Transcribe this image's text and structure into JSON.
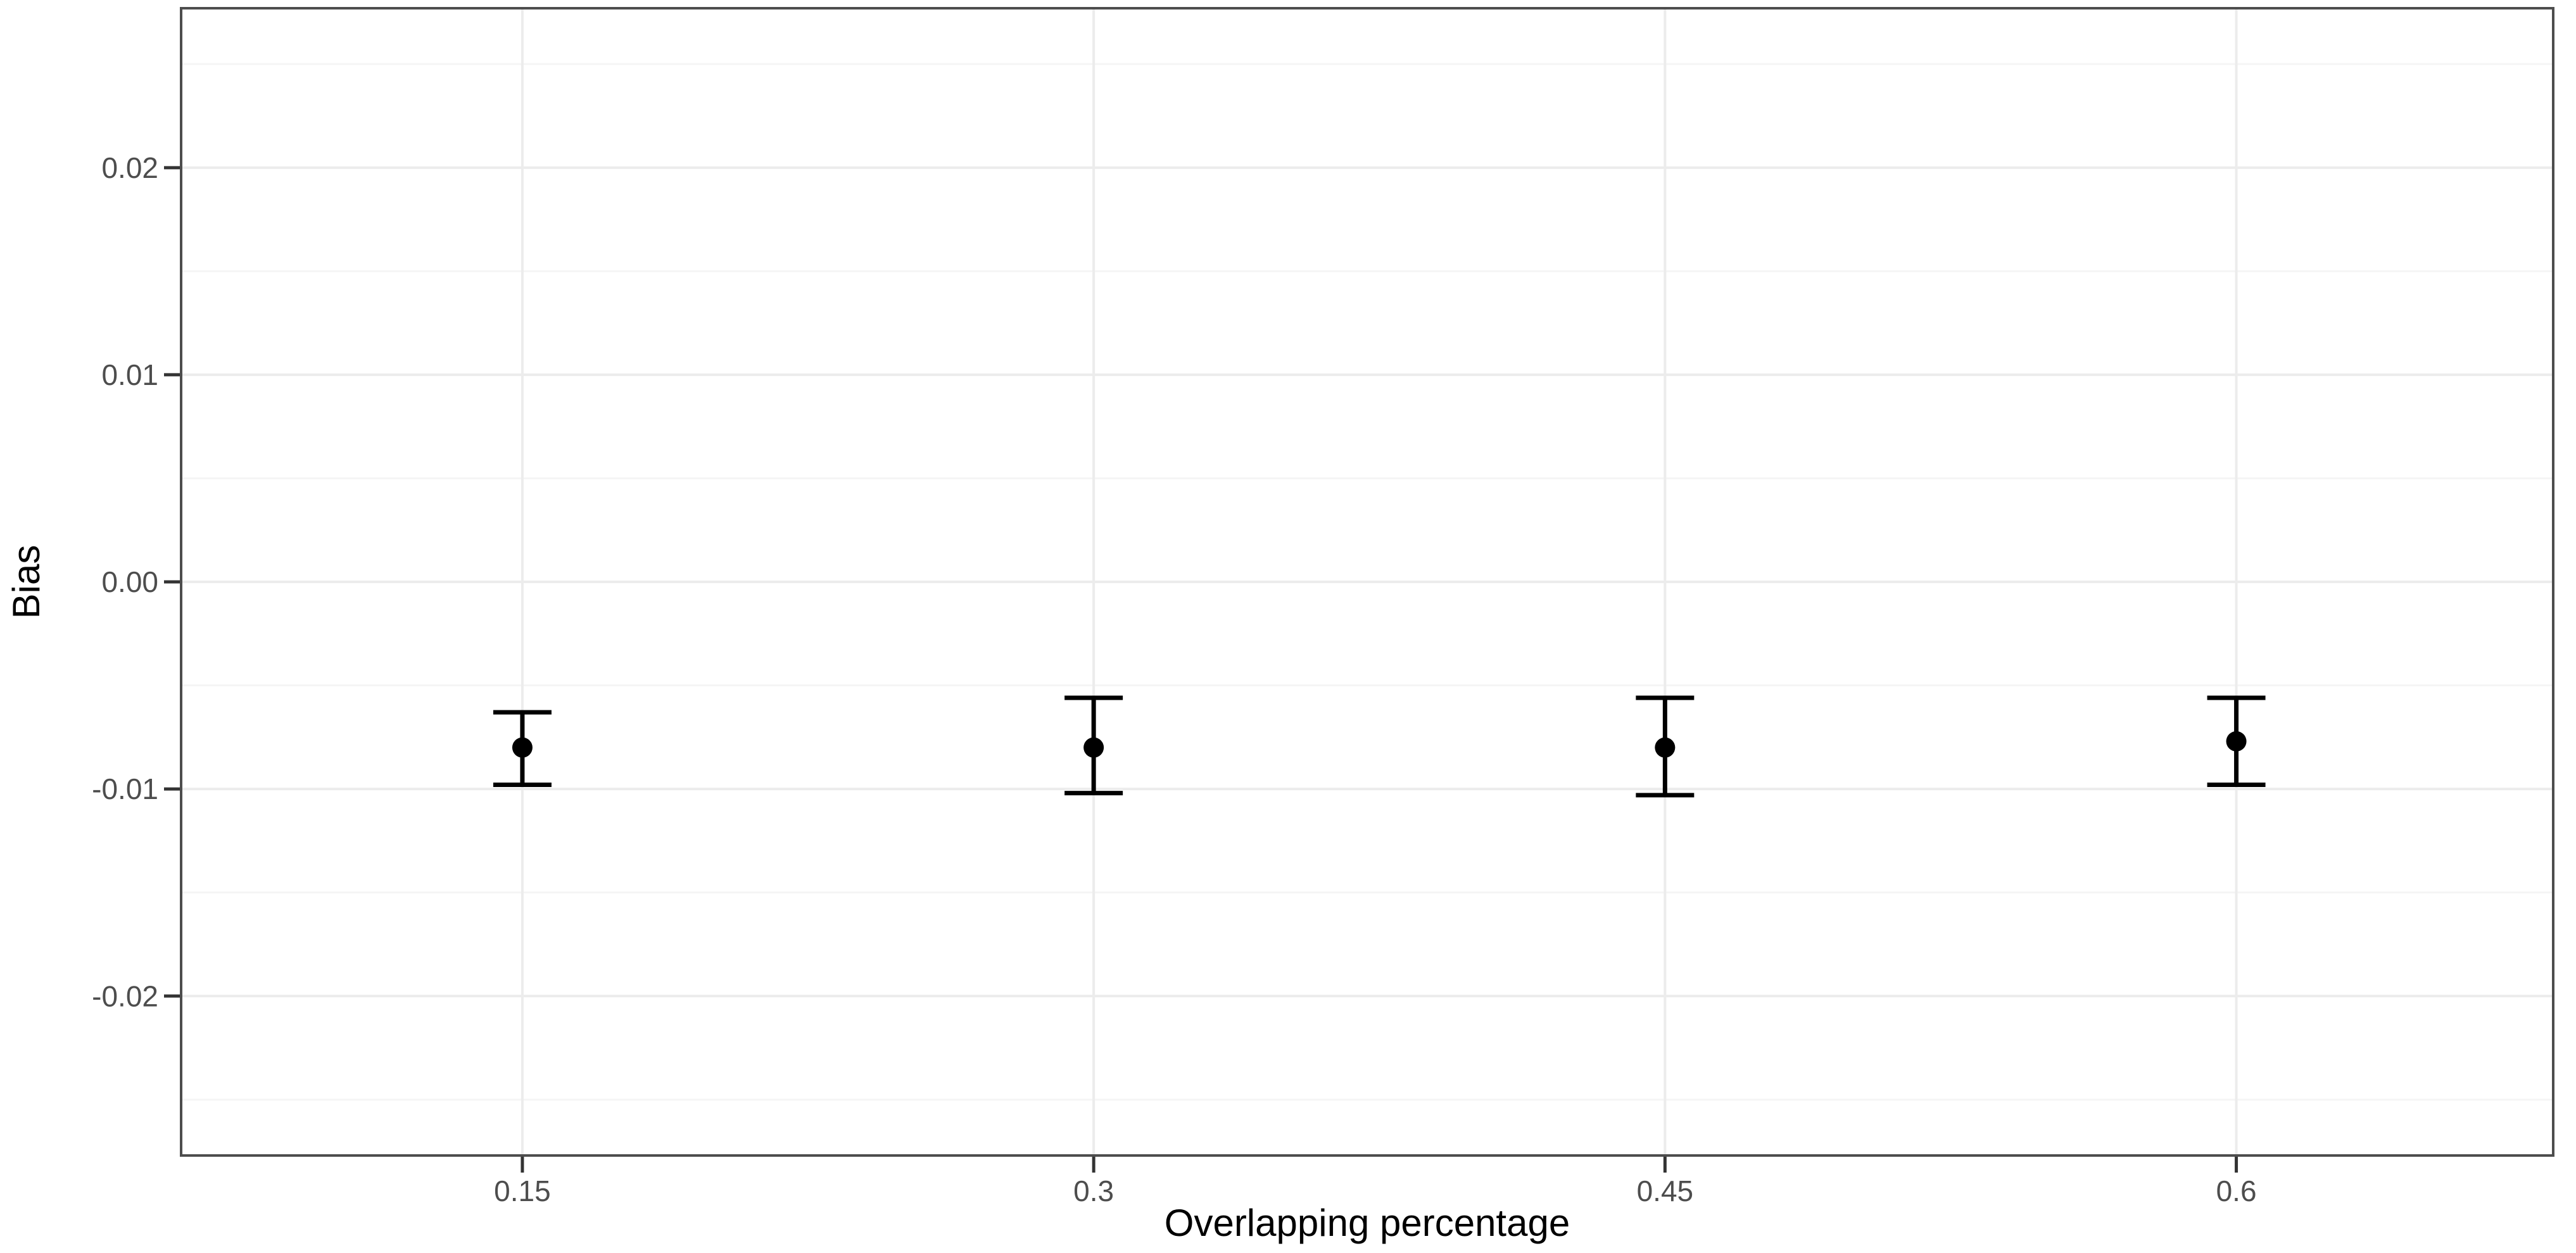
{
  "chart_data": {
    "type": "scatter",
    "subtype": "errorbar",
    "title": "",
    "xlabel": "Overlapping percentage",
    "ylabel": "Bias",
    "xlim": [
      0.0604,
      0.6832
    ],
    "ylim": [
      -0.0277,
      0.0277
    ],
    "grid": "on",
    "legend": "none",
    "x_ticks": [
      {
        "value": 0.15,
        "label": "0.15"
      },
      {
        "value": 0.3,
        "label": "0.3"
      },
      {
        "value": 0.45,
        "label": "0.45"
      },
      {
        "value": 0.6,
        "label": "0.6"
      }
    ],
    "y_ticks": [
      {
        "value": 0.02,
        "label": "0.02"
      },
      {
        "value": 0.01,
        "label": "0.01"
      },
      {
        "value": 0.0,
        "label": "0.00"
      },
      {
        "value": -0.01,
        "label": "-0.01"
      },
      {
        "value": -0.02,
        "label": "-0.02"
      }
    ],
    "y_minor_ticks": [
      0.025,
      0.015,
      0.005,
      -0.005,
      -0.015,
      -0.025
    ],
    "series": [
      {
        "name": "bias",
        "points": [
          {
            "x": 0.15,
            "y": -0.008,
            "ymin": -0.0098,
            "ymax": -0.0063
          },
          {
            "x": 0.3,
            "y": -0.008,
            "ymin": -0.0102,
            "ymax": -0.0056
          },
          {
            "x": 0.45,
            "y": -0.008,
            "ymin": -0.0103,
            "ymax": -0.0056
          },
          {
            "x": 0.6,
            "y": -0.0077,
            "ymin": -0.0098,
            "ymax": -0.0056
          }
        ]
      }
    ],
    "colors": {
      "point": "#000000",
      "errorbar": "#000000",
      "grid_major": "#ececec",
      "grid_minor": "#f5f5f5",
      "panel_border": "#4d4d4d",
      "tick_mark": "#333333",
      "tick_label": "#4d4d4d",
      "axis_title": "#000000",
      "background": "#ffffff"
    }
  }
}
